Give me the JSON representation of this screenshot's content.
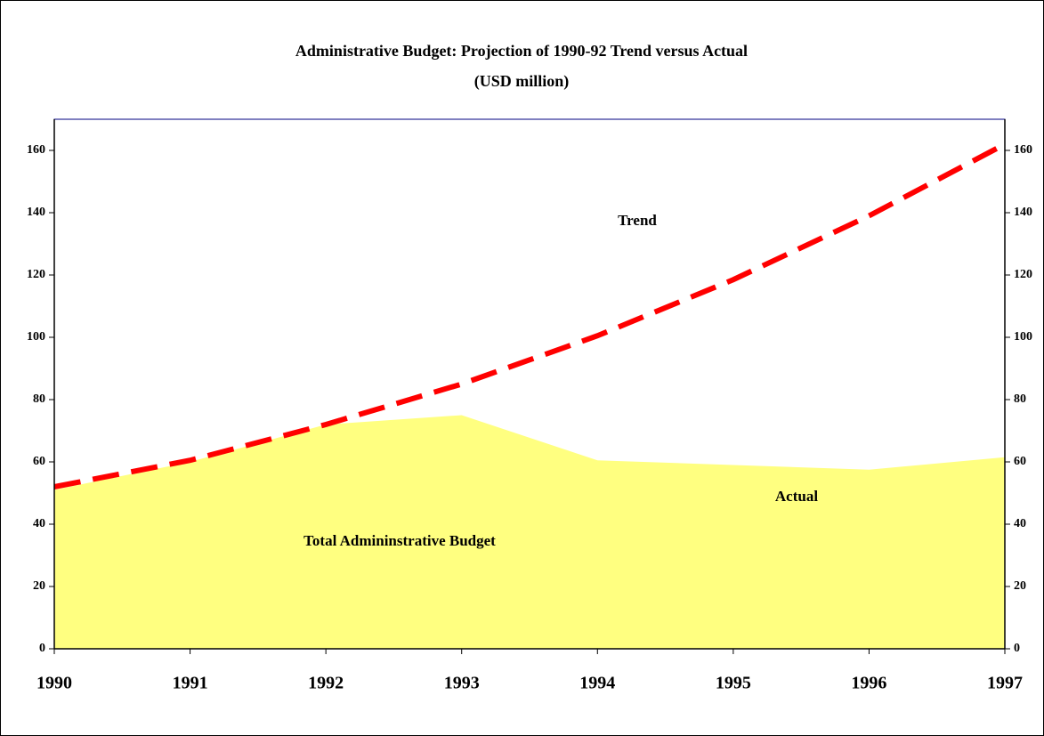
{
  "chart_data": {
    "type": "area-line",
    "title": "Administrative Budget:  Projection of 1990-92 Trend versus Actual",
    "subtitle": "(USD million)",
    "x": [
      1990,
      1991,
      1992,
      1993,
      1994,
      1995,
      1996,
      1997
    ],
    "xlim": [
      1990,
      1997
    ],
    "xticks": [
      1990,
      1991,
      1992,
      1993,
      1994,
      1995,
      1996,
      1997
    ],
    "ylim": [
      0,
      170
    ],
    "yticks": [
      0,
      20,
      40,
      60,
      80,
      100,
      120,
      140,
      160
    ],
    "y2lim": [
      0,
      170
    ],
    "y2ticks": [
      0,
      20,
      40,
      60,
      80,
      100,
      120,
      140,
      160
    ],
    "series": [
      {
        "name": "Actual",
        "kind": "area",
        "color": "#ffff80",
        "values": [
          51,
          60,
          72,
          75,
          60.5,
          59,
          57.5,
          61.5
        ]
      },
      {
        "name": "Trend",
        "kind": "line",
        "dashed": true,
        "color": "#ff0000",
        "values": [
          52,
          60.5,
          72,
          85,
          100.5,
          118.5,
          139,
          162
        ]
      }
    ],
    "annotations": [
      "Total Admininstrative Budget"
    ]
  }
}
